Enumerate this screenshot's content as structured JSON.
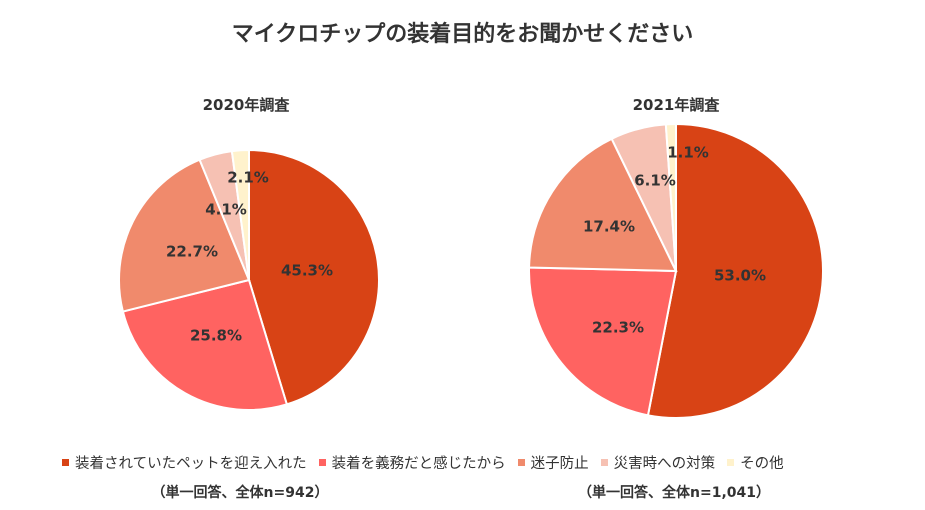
{
  "title": "マイクロチップの装着目的をお聞かせください",
  "chart_data": [
    {
      "type": "pie",
      "title": "2020年調査",
      "note": "（単一回答、全体n=942）",
      "labels": [
        "装着されていたペットを迎え入れた",
        "装着を義務だと感じたから",
        "迷子防止",
        "災害時への対策",
        "その他"
      ],
      "values": [
        45.3,
        25.8,
        22.7,
        4.1,
        2.1
      ],
      "value_labels": [
        "45.3%",
        "25.8%",
        "22.7%",
        "4.1%",
        "2.1%"
      ]
    },
    {
      "type": "pie",
      "title": "2021年調査",
      "note": "（単一回答、全体n=1,041）",
      "labels": [
        "装着されていたペットを迎え入れた",
        "装着を義務だと感じたから",
        "迷子防止",
        "災害時への対策",
        "その他"
      ],
      "values": [
        53.0,
        22.3,
        17.4,
        6.1,
        1.1
      ],
      "value_labels": [
        "53.0%",
        "22.3%",
        "17.4%",
        "6.1%",
        "1.1%"
      ]
    }
  ],
  "legend": [
    {
      "label": "装着されていたペットを迎え入れた",
      "color": "#d84315"
    },
    {
      "label": "装着を義務だと感じたから",
      "color": "#ff6361"
    },
    {
      "label": "迷子防止",
      "color": "#f08a6c"
    },
    {
      "label": "災害時への対策",
      "color": "#f6c1b3"
    },
    {
      "label": "その他",
      "color": "#fff2cc"
    }
  ]
}
